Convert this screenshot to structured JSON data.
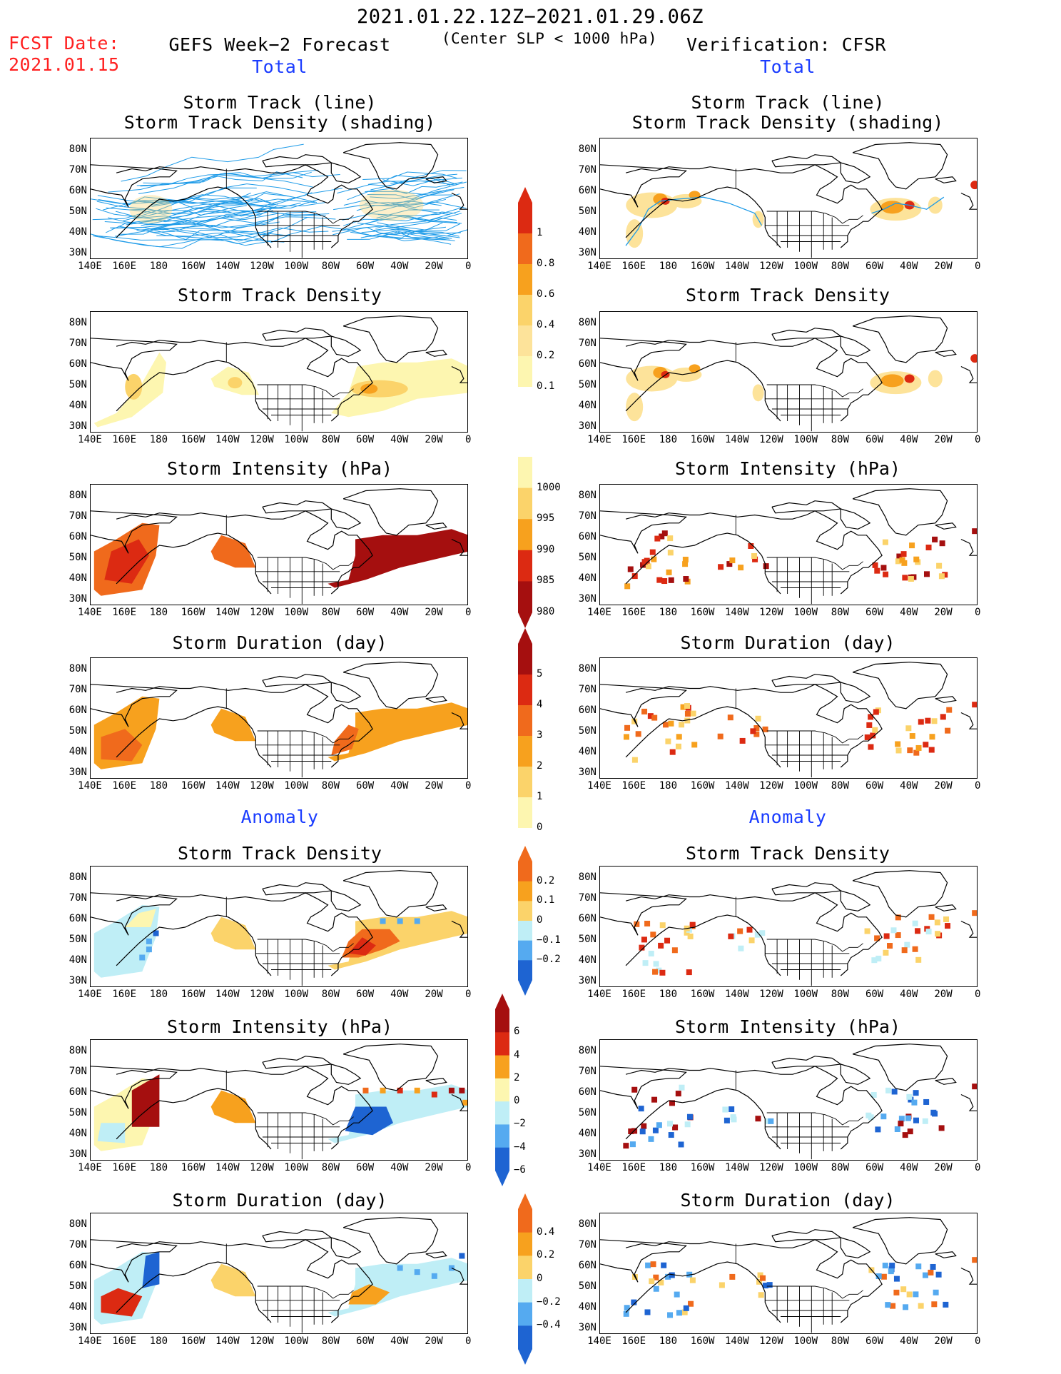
{
  "header": {
    "date_range": "2021.01.22.12Z−2021.01.29.06Z",
    "fcst_label": "FCST Date:",
    "fcst_date": "2021.01.15",
    "left_title": "GEFS Week−2 Forecast",
    "center_sub": "(Center SLP < 1000 hPa)",
    "right_title": "Verification: CFSR",
    "total_left": "Total",
    "total_right": "Total",
    "anomaly_left": "Anomaly",
    "anomaly_right": "Anomaly"
  },
  "panels": {
    "track_title_1": "Storm Track (line)",
    "track_title_2": "Storm Track Density (shading)",
    "density": "Storm Track Density",
    "intensity": "Storm Intensity (hPa)",
    "duration": "Storm Duration (day)"
  },
  "axes": {
    "lat": [
      "80N",
      "70N",
      "60N",
      "50N",
      "40N",
      "30N"
    ],
    "lon": [
      "140E",
      "160E",
      "180",
      "160W",
      "140W",
      "120W",
      "100W",
      "80W",
      "60W",
      "40W",
      "20W",
      "0"
    ]
  },
  "colorbars": {
    "density_total": [
      "1",
      "0.8",
      "0.6",
      "0.4",
      "0.2",
      "0.1"
    ],
    "intensity_total": [
      "1000",
      "995",
      "990",
      "985",
      "980"
    ],
    "duration_total": [
      "5",
      "4",
      "3",
      "2",
      "1",
      "0"
    ],
    "density_anom": [
      "0.2",
      "0.1",
      "0",
      "−0.1",
      "−0.2"
    ],
    "intensity_anom": [
      "6",
      "4",
      "2",
      "0",
      "−2",
      "−4",
      "−6"
    ],
    "duration_anom": [
      "0.4",
      "0.2",
      "0",
      "−0.2",
      "−0.4"
    ]
  },
  "colors": {
    "track_line": "#1e9be8",
    "yellow_light": "#fdf6b0",
    "yellow": "#fbd36a",
    "orange": "#f7a11e",
    "orange_red": "#f06a1c",
    "red": "#dc2a12",
    "dark_red": "#a50f0f",
    "light_blue": "#bfeef6",
    "blue": "#55aaf0",
    "dark_blue": "#1e64d2"
  }
}
